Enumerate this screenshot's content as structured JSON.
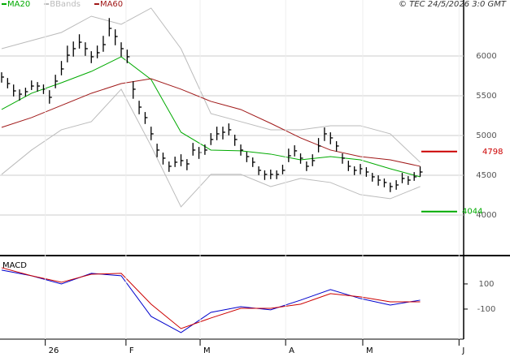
{
  "header": "© TEC 24/5/2026 3:0 GMT",
  "chart_data": [
    {
      "type": "ohlc",
      "color": "#000000",
      "x": [
        0,
        1,
        2,
        3,
        4,
        5,
        6,
        7,
        8,
        9,
        10,
        11,
        12,
        13,
        14,
        15,
        16,
        17,
        18,
        19,
        20,
        21,
        22,
        23,
        24,
        25,
        26,
        27,
        28,
        29,
        30,
        31,
        32,
        33,
        34,
        35,
        36,
        37,
        38,
        39,
        40,
        41,
        42,
        43,
        44,
        45,
        46,
        47,
        48,
        49,
        50,
        51,
        52,
        53,
        54,
        55,
        56,
        57,
        58,
        59,
        60,
        61,
        62,
        63,
        64,
        65,
        66,
        67,
        68,
        69,
        70
      ],
      "high": [
        5795,
        5723,
        5641,
        5580,
        5601,
        5692,
        5672,
        5642,
        5570,
        5764,
        5937,
        6130,
        6182,
        6273,
        6172,
        6060,
        6131,
        6253,
        6477,
        6335,
        6172,
        6080,
        5682,
        5437,
        5295,
        5111,
        4897,
        4785,
        4673,
        4734,
        4764,
        4703,
        4907,
        4856,
        4887,
        5030,
        5111,
        5111,
        5152,
        5010,
        4887,
        4795,
        4724,
        4612,
        4561,
        4571,
        4561,
        4632,
        4835,
        4877,
        4775,
        4673,
        4764,
        4968,
        5101,
        5040,
        4928,
        4775,
        4683,
        4612,
        4642,
        4601,
        4530,
        4499,
        4459,
        4408,
        4438,
        4530,
        4489,
        4540,
        4611
      ],
      "low": [
        5665,
        5593,
        5491,
        5440,
        5491,
        5572,
        5552,
        5522,
        5400,
        5594,
        5757,
        5920,
        5992,
        6093,
        6002,
        5910,
        5971,
        6053,
        6247,
        6135,
        5992,
        5910,
        5462,
        5267,
        5145,
        4941,
        4727,
        4635,
        4543,
        4604,
        4614,
        4563,
        4747,
        4706,
        4757,
        4880,
        4941,
        4951,
        5002,
        4870,
        4747,
        4665,
        4604,
        4502,
        4441,
        4451,
        4451,
        4512,
        4665,
        4737,
        4645,
        4553,
        4614,
        4788,
        4931,
        4890,
        4798,
        4645,
        4553,
        4502,
        4512,
        4481,
        4420,
        4369,
        4349,
        4288,
        4318,
        4400,
        4379,
        4430,
        4481
      ],
      "close": [
        5735,
        5653,
        5561,
        5520,
        5551,
        5622,
        5622,
        5582,
        5480,
        5684,
        5837,
        6010,
        6092,
        6173,
        6092,
        5990,
        6041,
        6143,
        6347,
        6245,
        6092,
        5990,
        5582,
        5357,
        5225,
        5021,
        4817,
        4715,
        4613,
        4664,
        4684,
        4643,
        4817,
        4786,
        4817,
        4950,
        5021,
        5041,
        5072,
        4950,
        4817,
        4735,
        4664,
        4562,
        4511,
        4511,
        4511,
        4562,
        4745,
        4807,
        4715,
        4613,
        4684,
        4868,
        5021,
        4970,
        4868,
        4715,
        4613,
        4562,
        4582,
        4541,
        4480,
        4439,
        4409,
        4358,
        4378,
        4460,
        4439,
        4480,
        4541
      ],
      "series": [
        {
          "name": "MA20",
          "color": "#00aa00",
          "x": [
            0,
            5,
            10,
            15,
            20,
            25,
            30,
            35,
            40,
            45,
            50,
            55,
            60,
            65,
            70
          ],
          "values": [
            5327,
            5531,
            5663,
            5806,
            5990,
            5704,
            5041,
            4817,
            4807,
            4766,
            4694,
            4735,
            4694,
            4582,
            4480
          ]
        },
        {
          "name": "BBands",
          "color": "#bbbbbb",
          "x": [
            0,
            5,
            10,
            15,
            20,
            25,
            30,
            35,
            40,
            45,
            50,
            55,
            60,
            65,
            70
          ],
          "values": [
            6092,
            6194,
            6296,
            6500,
            6398,
            6602,
            6092,
            5276,
            5174,
            5072,
            5072,
            5123,
            5123,
            5021,
            4664
          ]
        },
        {
          "color": "#bbbbbb",
          "x": [
            0,
            5,
            10,
            15,
            20,
            25,
            30,
            35,
            40,
            45,
            50,
            55,
            60,
            65,
            70
          ],
          "values": [
            4511,
            4817,
            5072,
            5174,
            5582,
            4868,
            4103,
            4511,
            4511,
            4358,
            4460,
            4409,
            4256,
            4205,
            4358
          ]
        },
        {
          "name": "MA60",
          "color": "#a01818",
          "x": [
            0,
            5,
            10,
            15,
            20,
            25,
            30,
            35,
            40,
            45,
            50,
            55,
            60,
            65,
            70
          ],
          "values": [
            5102,
            5225,
            5378,
            5531,
            5653,
            5714,
            5582,
            5429,
            5327,
            5153,
            4970,
            4817,
            4735,
            4694,
            4613
          ]
        }
      ],
      "annotations": [
        {
          "value": 4798,
          "color": "#cc0000"
        },
        {
          "value": 4044,
          "color": "#00aa00"
        }
      ],
      "xlim": [
        0,
        77
      ],
      "ylim": [
        3490,
        6704
      ],
      "yticks": [
        4000,
        4500,
        5000,
        5500,
        6000
      ],
      "grid": true
    },
    {
      "type": "line",
      "title": "MACD",
      "series": [
        {
          "color": "#0000cc",
          "x": [
            0,
            5,
            10,
            15,
            20,
            25,
            30,
            35,
            40,
            45,
            50,
            55,
            60,
            65,
            70
          ],
          "values": [
            210,
            165,
            100,
            184,
            165,
            -158,
            -287,
            -126,
            -81,
            -106,
            -29,
            55,
            -16,
            -68,
            -29
          ]
        },
        {
          "color": "#cc0000",
          "x": [
            0,
            5,
            10,
            15,
            20,
            25,
            30,
            35,
            40,
            45,
            50,
            55,
            60,
            65,
            70
          ],
          "values": [
            229,
            165,
            113,
            177,
            184,
            -61,
            -255,
            -171,
            -94,
            -94,
            -61,
            23,
            -3,
            -42,
            -42
          ]
        }
      ],
      "xlim": [
        0,
        77
      ],
      "ylim": [
        -339,
        306
      ],
      "yticks": [
        100,
        -100
      ],
      "xticks": [
        {
          "value": 7.3,
          "label": "26"
        },
        {
          "value": 20.8,
          "label": "F"
        },
        {
          "value": 33.2,
          "label": "M"
        },
        {
          "value": 47.5,
          "label": "A"
        },
        {
          "value": 60.4,
          "label": "M"
        },
        {
          "value": 76.5,
          "label": "J"
        }
      ]
    }
  ]
}
